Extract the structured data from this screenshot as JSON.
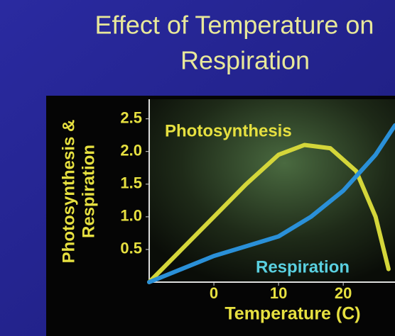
{
  "chart_data": {
    "type": "line",
    "title_lines": [
      "Effect of Temperature on",
      "Respiration"
    ],
    "x_label": "Temperature (C)",
    "y_label_lines": [
      "Photosynthesis &",
      "Respiration"
    ],
    "xlim": [
      -10,
      28
    ],
    "xticks": [
      0,
      10,
      20
    ],
    "ylim": [
      0,
      2.8
    ],
    "yticks": [
      0.5,
      {
        "value": 1,
        "label": "1.0"
      },
      1.5,
      {
        "value": 2,
        "label": "2.0"
      },
      2.5
    ],
    "series": [
      {
        "name": "Photosynthesis",
        "color": "#d4d63a",
        "x": [
          -10,
          -5,
          0,
          5,
          10,
          14,
          18,
          22,
          25,
          27
        ],
        "values": [
          0,
          0.5,
          1.0,
          1.5,
          1.95,
          2.1,
          2.05,
          1.7,
          1.0,
          0.2
        ]
      },
      {
        "name": "Respiration",
        "color": "#2a90d8",
        "x": [
          -10,
          -5,
          0,
          5,
          10,
          15,
          20,
          25,
          28
        ],
        "values": [
          0,
          0.2,
          0.4,
          0.55,
          0.7,
          1.0,
          1.4,
          1.95,
          2.4
        ]
      }
    ]
  }
}
